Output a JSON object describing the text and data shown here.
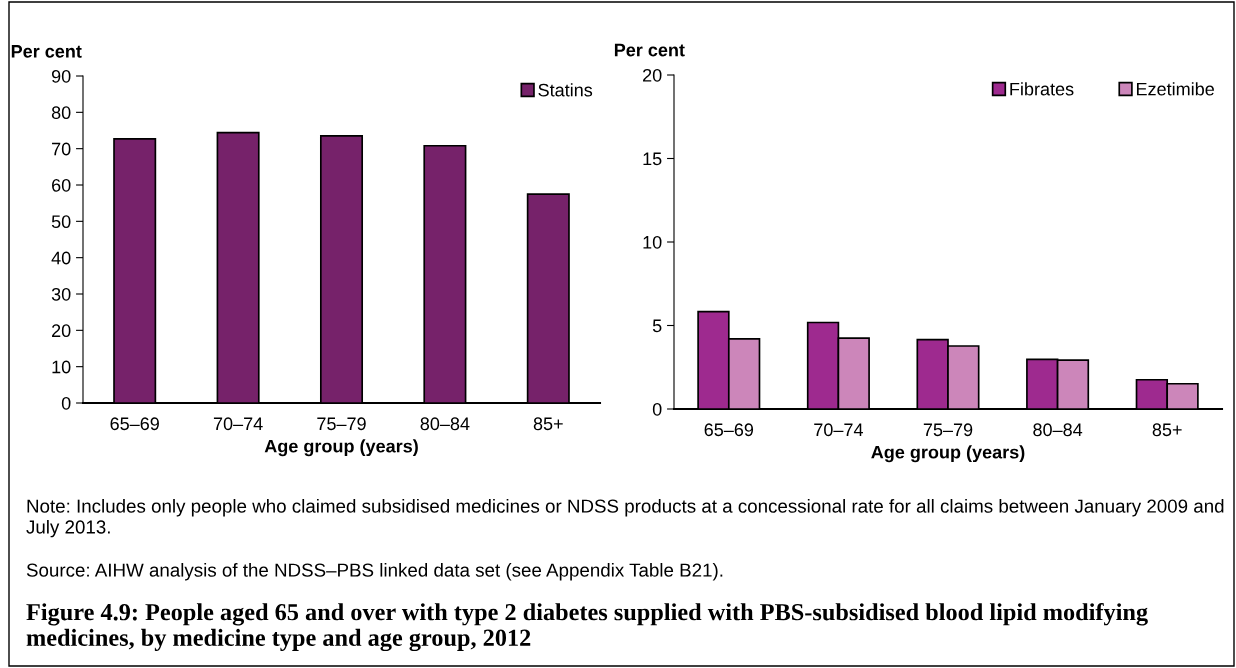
{
  "chart_data": [
    {
      "type": "bar",
      "ylabel": "Per cent",
      "xlabel": "Age group (years)",
      "categories": [
        "65–69",
        "70–74",
        "75–79",
        "80–84",
        "85+"
      ],
      "series": [
        {
          "name": "Statins",
          "color": "#76226a",
          "values": [
            72.7,
            74.4,
            73.5,
            70.8,
            57.5
          ]
        }
      ],
      "ylim": [
        0,
        90
      ],
      "yticks": [
        0,
        10,
        20,
        30,
        40,
        50,
        60,
        70,
        80,
        90
      ],
      "grid": false,
      "legend": "top right",
      "title": "Figure 4.9: People aged 65 and over with type 2 diabetes supplied with PBS-subsidised blood lipid modifying medicines, by medicine type and age group, 2012",
      "annotations": [
        "Note: Includes only people who claimed subsidised medicines or NDSS products at a concessional rate for all claims between January 2009 and July 2013.",
        "Source: AIHW analysis of the NDSS–PBS linked data set (see Appendix Table B21)."
      ]
    },
    {
      "type": "bar",
      "ylabel": "Per cent",
      "xlabel": "Age group (years)",
      "categories": [
        "65–69",
        "70–74",
        "75–79",
        "80–84",
        "85+"
      ],
      "series": [
        {
          "name": "Fibrates",
          "color": "#9e2a8f",
          "values": [
            5.83,
            5.18,
            4.15,
            2.97,
            1.75
          ]
        },
        {
          "name": "Ezetimibe",
          "color": "#cc86ba",
          "values": [
            4.2,
            4.24,
            3.77,
            2.93,
            1.51
          ]
        }
      ],
      "ylim": [
        0,
        20
      ],
      "yticks": [
        0,
        5,
        10,
        15,
        20
      ],
      "grid": false,
      "legend": "top right"
    }
  ]
}
